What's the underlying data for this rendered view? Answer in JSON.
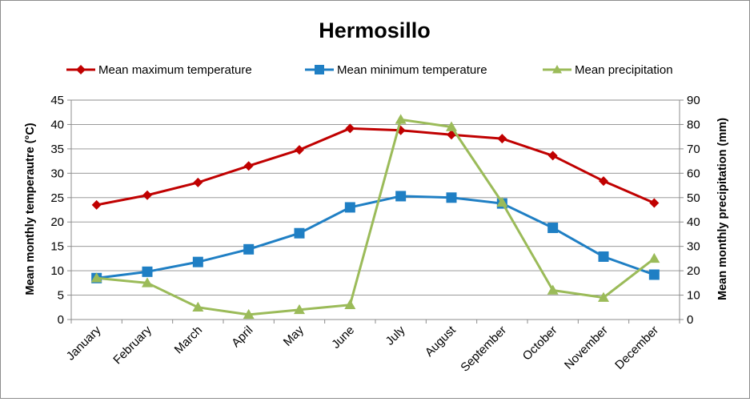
{
  "chart_data": {
    "type": "line",
    "title": "Hermosillo",
    "categories": [
      "January",
      "February",
      "March",
      "April",
      "May",
      "June",
      "July",
      "August",
      "September",
      "October",
      "November",
      "December"
    ],
    "y_left": {
      "label": "Mean monthly temperautre (°C)",
      "lim": [
        0,
        45
      ],
      "ticks": [
        0,
        5,
        10,
        15,
        20,
        25,
        30,
        35,
        40,
        45
      ]
    },
    "y_right": {
      "label": "Mean monthly precipitation (mm)",
      "lim": [
        0,
        90
      ],
      "ticks": [
        0,
        10,
        20,
        30,
        40,
        50,
        60,
        70,
        80,
        90
      ]
    },
    "grid": true,
    "legend_position": "top",
    "series": [
      {
        "name": "Mean maximum temperature",
        "axis": "left",
        "color": "#c00000",
        "marker": "diamond",
        "values": [
          23.5,
          25.5,
          28.1,
          31.5,
          34.8,
          39.2,
          38.8,
          37.9,
          37.1,
          33.6,
          28.4,
          23.9
        ]
      },
      {
        "name": "Mean minimum temperature",
        "axis": "left",
        "color": "#1f7fc4",
        "marker": "square",
        "values": [
          8.5,
          9.8,
          11.8,
          14.4,
          17.7,
          23.0,
          25.3,
          25.0,
          23.8,
          18.8,
          12.9,
          9.2
        ]
      },
      {
        "name": "Mean precipitation",
        "axis": "right",
        "color": "#9bbb59",
        "marker": "triangle",
        "values": [
          17,
          15,
          5,
          2,
          4,
          6,
          82,
          79,
          48,
          12,
          9,
          25
        ]
      }
    ]
  }
}
